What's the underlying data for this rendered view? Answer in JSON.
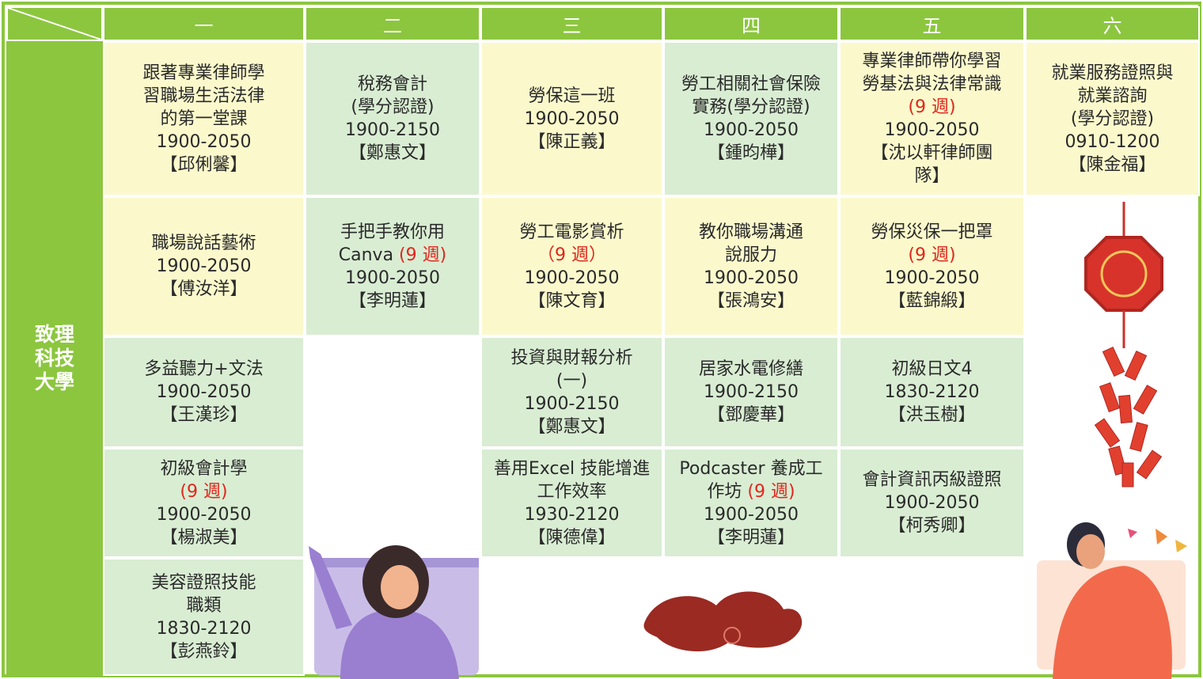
{
  "colors": {
    "yellow": "#fbf9cc",
    "green": "#d9edd3",
    "note": "#e0261d"
  },
  "side_label": "致理科技大學",
  "columns": [
    "一",
    "二",
    "三",
    "四",
    "五",
    "六"
  ],
  "rows": [
    {
      "cells": [
        {
          "bg": "yellow",
          "lines": [
            "跟著專業律師學",
            "習職場生活法律",
            "的第一堂課",
            "1900-2050",
            "【邱俐馨】"
          ]
        },
        {
          "bg": "green",
          "lines": [
            "稅務會計",
            "(學分認證)",
            "1900-2150",
            "【鄭惠文】"
          ]
        },
        {
          "bg": "yellow",
          "lines": [
            "勞保這一班",
            "1900-2050",
            "【陳正義】"
          ]
        },
        {
          "bg": "green",
          "lines": [
            "勞工相關社會保險",
            "實務(學分認證)",
            "1900-2050",
            "【鍾昀樺】"
          ]
        },
        {
          "bg": "yellow",
          "lines": [
            "專業律師帶你學習",
            "勞基法與法律常識",
            [
              {
                "text": "(9 週)",
                "color": "note"
              }
            ],
            "1900-2050",
            "【沈以軒律師團",
            "隊】"
          ]
        },
        {
          "bg": "yellow",
          "lines": [
            "就業服務證照與",
            "就業諮詢",
            "(學分認證)",
            "0910-1200",
            "【陳金福】"
          ]
        }
      ]
    },
    {
      "cells": [
        {
          "bg": "yellow",
          "lines": [
            "職場說話藝術",
            "1900-2050",
            "【傅汝洋】"
          ]
        },
        {
          "bg": "green",
          "lines": [
            "手把手教你用",
            [
              "Canva ",
              {
                "text": "(9 週)",
                "color": "note"
              }
            ],
            "1900-2050",
            "【李明蓮】"
          ]
        },
        {
          "bg": "yellow",
          "lines": [
            "勞工電影賞析",
            [
              {
                "text": "（9 週）",
                "color": "note"
              }
            ],
            "1900-2050",
            "【陳文育】"
          ]
        },
        {
          "bg": "yellow",
          "lines": [
            "教你職場溝通",
            "說服力",
            "1900-2050",
            "【張鴻安】"
          ]
        },
        {
          "bg": "yellow",
          "lines": [
            "勞保災保一把罩",
            [
              {
                "text": "(9 週)",
                "color": "note"
              }
            ],
            "1900-2050",
            "【藍錦緞】"
          ]
        },
        null
      ]
    },
    {
      "cells": [
        {
          "bg": "green",
          "lines": [
            "多益聽力+文法",
            "1900-2050",
            "【王漢珍】"
          ]
        },
        null,
        {
          "bg": "green",
          "lines": [
            "投資與財報分析",
            "(一)",
            "1900-2150",
            "【鄭惠文】"
          ]
        },
        {
          "bg": "green",
          "lines": [
            "居家水電修繕",
            "1900-2150",
            "【鄧慶華】"
          ]
        },
        {
          "bg": "green",
          "lines": [
            "初級日文4",
            "1830-2120",
            "【洪玉樹】"
          ]
        },
        null
      ]
    },
    {
      "cells": [
        {
          "bg": "green",
          "lines": [
            "初級會計學",
            [
              {
                "text": "(9 週)",
                "color": "note"
              }
            ],
            "1900-2050",
            "【楊淑美】"
          ]
        },
        null,
        {
          "bg": "green",
          "lines": [
            "善用Excel 技能增進",
            "工作效率",
            "1930-2120",
            "【陳德偉】"
          ]
        },
        {
          "bg": "green",
          "lines": [
            "Podcaster 養成工",
            [
              "作坊 ",
              {
                "text": "(9 週)",
                "color": "note"
              }
            ],
            "1900-2050",
            "【李明蓮】"
          ]
        },
        {
          "bg": "green",
          "lines": [
            "會計資訊丙級證照",
            "1900-2050",
            "【柯秀卿】"
          ]
        },
        null
      ]
    },
    {
      "cells": [
        {
          "bg": "green",
          "lines": [
            "美容證照技能",
            "職類",
            "1830-2120",
            "【彭燕鈴】"
          ]
        },
        null,
        null,
        null,
        null,
        null
      ]
    }
  ]
}
